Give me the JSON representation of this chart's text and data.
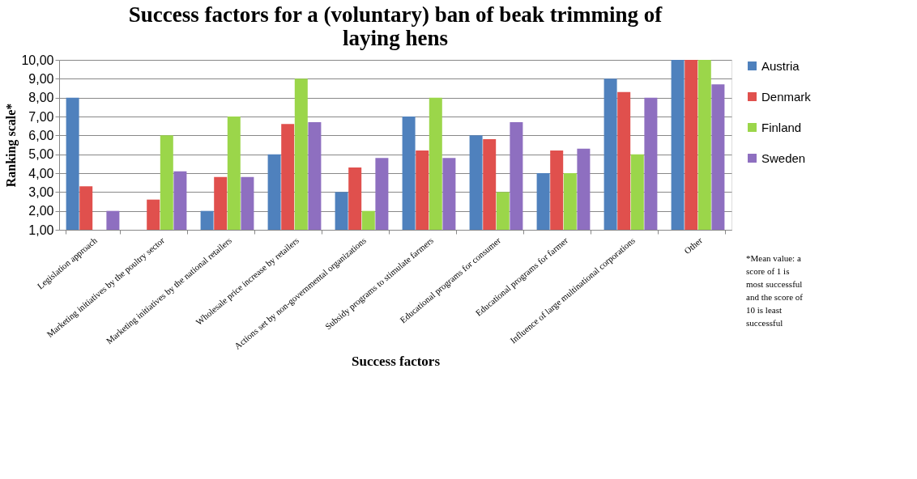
{
  "chart_data": {
    "type": "bar",
    "title": "Success factors for a (voluntary) ban of beak trimming of laying hens",
    "xlabel": "Success factors",
    "ylabel": "Ranking scale*",
    "categories": [
      "Legislation approach",
      "Marketing initiatives by the poultry sector",
      "Marketing initiatives by the national retailers",
      "Wholesale price increase by retailers",
      "Actions set by non-governmental  organizations",
      "Subsidy programs to stimulate farmers",
      "Educational programs for consumer",
      "Educational programs for farmer",
      "Influence of large multinational corporations",
      "Other"
    ],
    "series": [
      {
        "name": "Austria",
        "color": "#4f81bd",
        "values": [
          8,
          1,
          2,
          5,
          3,
          7,
          6,
          4,
          9,
          10
        ]
      },
      {
        "name": "Denmark",
        "color": "#e0504d",
        "values": [
          3.3,
          2.6,
          3.8,
          6.6,
          4.3,
          5.2,
          5.8,
          5.2,
          8.3,
          10
        ]
      },
      {
        "name": "Finland",
        "color": "#9bd64a",
        "values": [
          1,
          6,
          7,
          9,
          2,
          8,
          3,
          4,
          5,
          10
        ]
      },
      {
        "name": "Sweden",
        "color": "#8e6fc0",
        "values": [
          2,
          4.1,
          3.8,
          6.7,
          4.8,
          4.8,
          6.7,
          5.3,
          8.0,
          8.7
        ]
      }
    ],
    "ylim": [
      1,
      10
    ],
    "yticks": [
      {
        "value": 1,
        "label": "1,00"
      },
      {
        "value": 2,
        "label": "2,00"
      },
      {
        "value": 3,
        "label": "3,00"
      },
      {
        "value": 4,
        "label": "4,00"
      },
      {
        "value": 5,
        "label": "5,00"
      },
      {
        "value": 6,
        "label": "6,00"
      },
      {
        "value": 7,
        "label": "7,00"
      },
      {
        "value": 8,
        "label": "8,00"
      },
      {
        "value": 9,
        "label": "9,00"
      },
      {
        "value": 10,
        "label": "10,00"
      }
    ],
    "grid": "y",
    "legend": "right",
    "annotations": [
      "*Mean value: a score of 1 is most successful and the score of 10 is least successful"
    ]
  }
}
